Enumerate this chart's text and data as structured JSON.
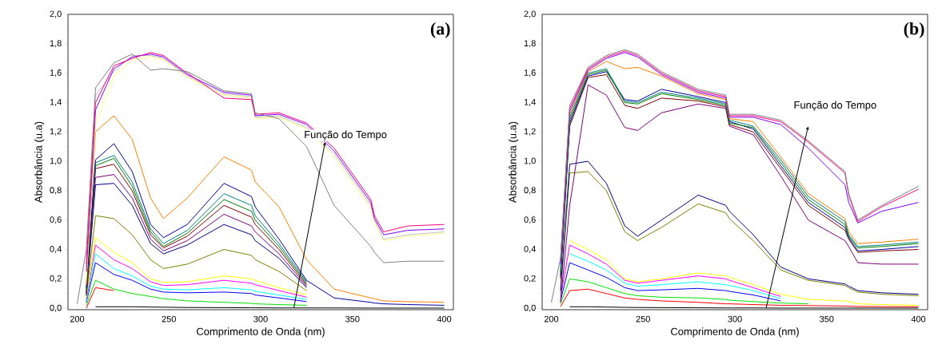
{
  "chart_data": [
    {
      "type": "line",
      "title": "(a)",
      "xlabel": "Comprimento de Onda (nm)",
      "ylabel": "Absorbância (u.a)",
      "annotations": [
        "Função do Tempo"
      ],
      "xlim": [
        195,
        405
      ],
      "ylim": [
        -0.01,
        2.0
      ],
      "xticks": [
        200,
        250,
        300,
        350,
        400
      ],
      "yticks": [
        {
          "value": 0,
          "label": "0,0"
        },
        {
          "value": 0.2,
          "label": "0,2"
        },
        {
          "value": 0.4,
          "label": "0,4"
        },
        {
          "value": 0.6,
          "label": "0,6"
        },
        {
          "value": 0.8,
          "label": "0,8"
        },
        {
          "value": 1.0,
          "label": "1,0"
        },
        {
          "value": 1.2,
          "label": "1,2"
        },
        {
          "value": 1.4,
          "label": "1,4"
        },
        {
          "value": 1.6,
          "label": "1,6"
        },
        {
          "value": 1.8,
          "label": "1,8"
        },
        {
          "value": 2.0,
          "label": "2,0"
        }
      ],
      "x": [
        200,
        205,
        210,
        220,
        230,
        240,
        247,
        260,
        280,
        295,
        297,
        310,
        325,
        340,
        360,
        362,
        367,
        380,
        400
      ],
      "series": [
        {
          "color": "#000000",
          "values": [
            null,
            null,
            0.01,
            0.01,
            0.01,
            0.008,
            0.007,
            0.005,
            0.004,
            0.003,
            0.003,
            0.002,
            0.002,
            0.002,
            0.001,
            0.001,
            0.001,
            0.001,
            0.001
          ]
        },
        {
          "color": "#ff0000",
          "values": [
            null,
            0,
            0.14,
            0.12,
            null,
            null,
            null,
            null,
            null,
            null,
            null,
            null,
            null,
            null,
            null,
            null,
            null,
            null,
            null
          ]
        },
        {
          "color": "#00e000",
          "values": [
            null,
            0.02,
            0.19,
            0.13,
            0.1,
            0.08,
            0.065,
            0.05,
            0.04,
            0.033,
            0.03,
            0.025,
            0.02,
            null,
            null,
            null,
            null,
            null,
            null
          ]
        },
        {
          "color": "#0000ff",
          "values": [
            null,
            0.04,
            0.31,
            0.23,
            0.19,
            0.13,
            0.11,
            0.105,
            0.11,
            0.1,
            0.09,
            0.07,
            0.045,
            null,
            null,
            null,
            null,
            null,
            null
          ]
        },
        {
          "color": "#00ffff",
          "values": [
            null,
            0.05,
            0.37,
            0.27,
            0.22,
            0.15,
            0.13,
            0.125,
            0.14,
            0.125,
            0.115,
            0.09,
            0.06,
            null,
            null,
            null,
            null,
            null,
            null
          ]
        },
        {
          "color": "#ff00ff",
          "values": [
            null,
            0.06,
            0.43,
            0.33,
            0.27,
            0.18,
            0.155,
            0.16,
            0.19,
            0.17,
            0.16,
            0.12,
            0.075,
            null,
            null,
            null,
            null,
            null,
            null
          ]
        },
        {
          "color": "#ffff00",
          "values": [
            null,
            0.07,
            0.48,
            0.38,
            0.31,
            0.2,
            0.175,
            0.18,
            0.22,
            0.2,
            0.19,
            0.14,
            0.09,
            null,
            null,
            null,
            null,
            null,
            null
          ]
        },
        {
          "color": "#808000",
          "values": [
            null,
            0.08,
            0.63,
            0.61,
            0.5,
            0.33,
            0.27,
            0.3,
            0.4,
            0.36,
            0.33,
            0.25,
            0.12,
            null,
            null,
            null,
            null,
            null,
            null
          ]
        },
        {
          "color": "#000080",
          "values": [
            null,
            0.09,
            0.84,
            0.85,
            0.7,
            0.44,
            0.37,
            0.43,
            0.57,
            0.5,
            0.46,
            0.34,
            0.14,
            null,
            null,
            null,
            null,
            null,
            null
          ]
        },
        {
          "color": "#800080",
          "values": [
            null,
            0.1,
            0.89,
            0.91,
            0.75,
            0.47,
            0.39,
            0.46,
            0.64,
            0.56,
            0.52,
            0.37,
            0.15,
            null,
            null,
            null,
            null,
            null,
            null
          ]
        },
        {
          "color": "#800000",
          "values": [
            null,
            0.11,
            0.95,
            0.98,
            0.8,
            0.5,
            0.41,
            0.49,
            0.7,
            0.62,
            0.57,
            0.4,
            0.16,
            null,
            null,
            null,
            null,
            null,
            null
          ]
        },
        {
          "color": "#008000",
          "values": [
            null,
            0.12,
            0.97,
            1.02,
            0.83,
            0.52,
            0.42,
            0.51,
            0.74,
            0.66,
            0.6,
            0.42,
            0.17,
            null,
            null,
            null,
            null,
            null,
            null
          ]
        },
        {
          "color": "#008080",
          "values": [
            null,
            0.13,
            0.99,
            1.04,
            0.86,
            0.54,
            0.44,
            0.53,
            0.78,
            0.7,
            0.63,
            0.44,
            0.18,
            null,
            null,
            null,
            null,
            null,
            null
          ]
        },
        {
          "color": "#0000a0",
          "values": [
            null,
            0.14,
            1.01,
            1.12,
            0.93,
            0.57,
            0.48,
            0.57,
            0.85,
            0.76,
            0.69,
            0.47,
            0.19,
            0.07,
            0.04,
            0.035,
            0.03,
            0.025,
            0.02
          ]
        },
        {
          "color": "#ff8000",
          "values": [
            null,
            0.16,
            1.2,
            1.31,
            1.15,
            0.75,
            0.61,
            0.75,
            1.03,
            0.94,
            0.86,
            0.69,
            0.33,
            0.13,
            0.07,
            0.065,
            0.05,
            0.045,
            0.04
          ]
        },
        {
          "color": "#ffff80",
          "values": [
            null,
            0.2,
            1.25,
            1.58,
            1.69,
            1.71,
            1.69,
            1.57,
            1.45,
            1.43,
            1.29,
            1.3,
            1.22,
            1.03,
            0.68,
            0.58,
            0.46,
            0.49,
            0.51
          ]
        },
        {
          "color": "#c0c0c0",
          "values": [
            null,
            0.35,
            1.45,
            1.61,
            1.72,
            1.72,
            1.7,
            1.58,
            1.46,
            1.44,
            1.3,
            1.31,
            1.23,
            1.05,
            0.7,
            0.6,
            0.47,
            0.5,
            0.52
          ]
        },
        {
          "color": "#8000ff",
          "values": [
            null,
            0.25,
            1.35,
            1.63,
            1.71,
            1.73,
            1.71,
            1.59,
            1.47,
            1.45,
            1.31,
            1.32,
            1.25,
            1.07,
            0.72,
            0.61,
            0.5,
            0.53,
            0.54
          ]
        },
        {
          "color": "#ff0080",
          "values": [
            null,
            0.3,
            1.4,
            1.65,
            1.7,
            1.74,
            1.72,
            1.6,
            1.43,
            1.42,
            1.32,
            1.33,
            1.26,
            1.09,
            0.74,
            0.63,
            0.52,
            0.56,
            0.57
          ]
        },
        {
          "color": "#808080",
          "values": [
            0.03,
            0.4,
            1.5,
            1.67,
            1.73,
            1.62,
            1.63,
            1.61,
            1.48,
            1.46,
            1.33,
            1.29,
            1.1,
            0.7,
            0.42,
            0.38,
            0.31,
            0.32,
            0.32
          ]
        }
      ]
    },
    {
      "type": "line",
      "title": "(b)",
      "xlabel": "Comprimento de Onda (nm)",
      "ylabel": "Absorbância (u.a)",
      "annotations": [
        "Função do Tempo"
      ],
      "xlim": [
        195,
        405
      ],
      "ylim": [
        -0.01,
        2.0
      ],
      "xticks": [
        200,
        250,
        300,
        350,
        400
      ],
      "yticks": [
        {
          "value": 0,
          "label": "0,0"
        },
        {
          "value": 0.2,
          "label": "0,2"
        },
        {
          "value": 0.4,
          "label": "0,4"
        },
        {
          "value": 0.6,
          "label": "0,6"
        },
        {
          "value": 0.8,
          "label": "0,8"
        },
        {
          "value": 1.0,
          "label": "1,0"
        },
        {
          "value": 1.2,
          "label": "1,2"
        },
        {
          "value": 1.4,
          "label": "1,4"
        },
        {
          "value": 1.6,
          "label": "1,6"
        },
        {
          "value": 1.8,
          "label": "1,8"
        },
        {
          "value": 2.0,
          "label": "2,0"
        }
      ],
      "x": [
        200,
        205,
        210,
        220,
        230,
        240,
        247,
        260,
        280,
        295,
        297,
        310,
        325,
        340,
        360,
        362,
        367,
        380,
        400
      ],
      "series": [
        {
          "color": "#000000",
          "values": [
            null,
            null,
            0.01,
            0.01,
            0.008,
            0.006,
            0.005,
            0.004,
            0.003,
            0.002,
            0.002,
            0.002,
            0.001,
            0.001,
            0.001,
            0.001,
            0.001,
            0.001,
            0.001
          ]
        },
        {
          "color": "#ff0000",
          "values": [
            null,
            0.01,
            0.12,
            0.13,
            0.1,
            0.07,
            0.06,
            0.05,
            0.04,
            0.03,
            0.03,
            0.025,
            0.02,
            0.018,
            0.015,
            0.014,
            0.012,
            0.011,
            0.01
          ]
        },
        {
          "color": "#00e000",
          "values": [
            null,
            0.03,
            0.2,
            0.18,
            0.14,
            0.1,
            0.085,
            0.075,
            0.07,
            0.06,
            0.055,
            0.045,
            0.035,
            0.03,
            null,
            null,
            null,
            null,
            null
          ]
        },
        {
          "color": "#0000ff",
          "values": [
            null,
            0.05,
            0.31,
            0.26,
            0.21,
            0.14,
            0.12,
            0.125,
            0.135,
            0.12,
            0.115,
            0.09,
            0.05,
            null,
            null,
            null,
            null,
            null,
            null
          ]
        },
        {
          "color": "#00ffff",
          "values": [
            null,
            null,
            0.37,
            0.32,
            0.26,
            0.17,
            0.15,
            0.16,
            0.18,
            0.16,
            0.155,
            0.12,
            0.065,
            null,
            null,
            null,
            null,
            null,
            null
          ]
        },
        {
          "color": "#ff00ff",
          "values": [
            null,
            0.07,
            0.43,
            0.37,
            0.3,
            0.19,
            0.17,
            0.19,
            0.22,
            0.2,
            0.19,
            0.14,
            0.08,
            null,
            null,
            null,
            null,
            null,
            null
          ]
        },
        {
          "color": "#ffff00",
          "values": [
            null,
            null,
            0.46,
            0.4,
            0.33,
            0.2,
            0.18,
            0.2,
            0.24,
            0.22,
            0.21,
            0.16,
            0.095,
            0.06,
            0.05,
            0.045,
            0.03,
            0.025,
            0.02
          ]
        },
        {
          "color": "#808000",
          "values": [
            null,
            0.1,
            0.92,
            0.93,
            0.8,
            0.52,
            0.46,
            0.55,
            0.71,
            0.65,
            0.61,
            0.46,
            0.26,
            0.19,
            0.155,
            0.14,
            0.11,
            0.095,
            0.085
          ]
        },
        {
          "color": "#000080",
          "values": [
            null,
            0.12,
            0.98,
            1.0,
            0.85,
            0.56,
            0.49,
            0.6,
            0.77,
            0.7,
            0.66,
            0.5,
            0.28,
            0.2,
            0.165,
            0.15,
            0.12,
            0.105,
            0.095
          ]
        },
        {
          "color": "#800080",
          "values": [
            null,
            0.04,
            0.7,
            1.52,
            1.45,
            1.23,
            1.21,
            1.33,
            1.39,
            1.36,
            1.24,
            1.18,
            0.9,
            0.6,
            0.46,
            0.42,
            0.31,
            0.3,
            0.3
          ]
        },
        {
          "color": "#800000",
          "values": [
            null,
            0.2,
            1.24,
            1.57,
            1.59,
            1.38,
            1.36,
            1.43,
            1.41,
            1.37,
            1.25,
            1.2,
            0.95,
            0.7,
            0.53,
            0.47,
            0.38,
            0.39,
            0.4
          ]
        },
        {
          "color": "#0000a0",
          "values": [
            null,
            0.22,
            1.26,
            1.58,
            1.61,
            1.42,
            1.41,
            1.49,
            1.44,
            1.4,
            1.27,
            1.22,
            0.97,
            0.72,
            0.55,
            0.48,
            0.39,
            0.4,
            0.42
          ]
        },
        {
          "color": "#008000",
          "values": [
            null,
            0.24,
            1.28,
            1.59,
            1.62,
            1.4,
            1.39,
            1.46,
            1.42,
            1.38,
            1.26,
            1.23,
            0.99,
            0.74,
            0.57,
            0.49,
            0.41,
            0.42,
            0.44
          ]
        },
        {
          "color": "#008080",
          "values": [
            null,
            0.26,
            1.3,
            1.6,
            1.63,
            1.41,
            1.4,
            1.47,
            1.43,
            1.39,
            1.28,
            1.24,
            1.01,
            0.76,
            0.59,
            0.5,
            0.42,
            0.43,
            0.45
          ]
        },
        {
          "color": "#ff8000",
          "values": [
            null,
            null,
            1.32,
            1.61,
            1.68,
            1.63,
            1.64,
            1.58,
            1.46,
            1.42,
            1.29,
            1.27,
            1.03,
            0.78,
            0.61,
            0.52,
            0.44,
            0.45,
            0.47
          ]
        },
        {
          "color": "#8000ff",
          "values": [
            null,
            0.3,
            1.34,
            1.62,
            1.7,
            1.74,
            1.71,
            1.59,
            1.47,
            1.43,
            1.3,
            1.3,
            1.25,
            1.09,
            0.84,
            0.72,
            0.58,
            0.66,
            0.72
          ]
        },
        {
          "color": "#ff0080",
          "values": [
            null,
            0.32,
            1.36,
            1.63,
            1.71,
            1.75,
            1.72,
            1.6,
            1.48,
            1.44,
            1.31,
            1.31,
            1.27,
            1.13,
            0.92,
            0.77,
            0.59,
            0.69,
            0.81
          ]
        },
        {
          "color": "#808080",
          "values": [
            0.04,
            0.34,
            1.38,
            1.64,
            1.72,
            1.76,
            1.73,
            1.61,
            1.49,
            1.45,
            1.32,
            1.32,
            1.28,
            1.14,
            0.93,
            0.78,
            0.6,
            0.7,
            0.83
          ]
        }
      ]
    }
  ]
}
